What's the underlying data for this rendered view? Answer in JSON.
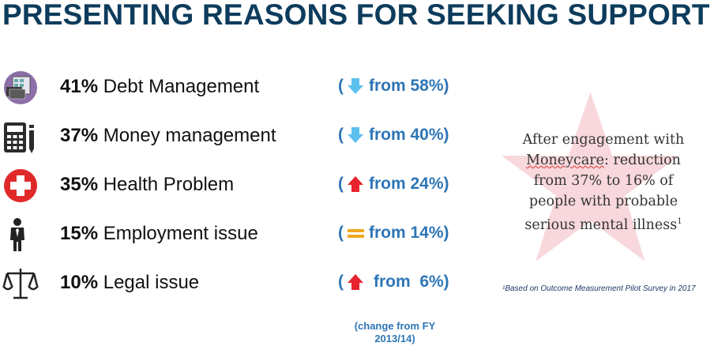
{
  "title": "PRESENTING REASONS FOR SEEKING SUPPORT",
  "rows": [
    {
      "icon": "debt-cards-icon",
      "pct": "41%",
      "label": "Debt Management",
      "direction": "down",
      "open": "(",
      "change": "from 58%)"
    },
    {
      "icon": "calculator-icon",
      "pct": "37%",
      "label": "Money management",
      "direction": "down",
      "open": "(",
      "change": "from 40%)"
    },
    {
      "icon": "health-cross-icon",
      "pct": "35%",
      "label": "Health Problem",
      "direction": "up",
      "open": "(",
      "change": "from 24%)"
    },
    {
      "icon": "person-icon",
      "pct": "15%",
      "label": "Employment issue",
      "direction": "equal",
      "open": "(",
      "change": "from 14%)"
    },
    {
      "icon": "scales-icon",
      "pct": "10%",
      "label": "Legal issue",
      "direction": "up",
      "open": "(",
      "change": "from  6%)"
    }
  ],
  "change_note_line1": "(change from FY",
  "change_note_line2": "2013/14)",
  "callout": {
    "line1": "After engagement with",
    "line2_word": "Moneycare",
    "line2_rest": ": reduction",
    "line3": "from 37% to 16% of",
    "line4": "people with probable",
    "line5": "serious mental illness",
    "sup": "1"
  },
  "source": "¹Based on Outcome Measurement Pilot Survey in 2017",
  "colors": {
    "title": "#0d3c5c",
    "change_text": "#2e75b6",
    "arrow_down": "#5cc0ef",
    "arrow_up": "#e8242e",
    "equal": "#f0a81c",
    "star": "#f8d8dc"
  }
}
